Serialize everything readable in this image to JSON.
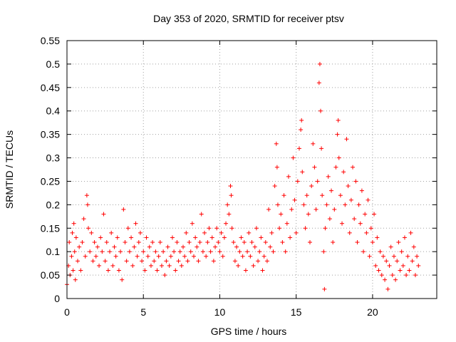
{
  "chart_data": {
    "type": "scatter",
    "title": "Day 353 of 2020, SRMTID for receiver ptsv",
    "xlabel": "GPS time / hours",
    "ylabel": "SRMTID / TECUs",
    "xlim": [
      0,
      24.2
    ],
    "ylim": [
      0,
      0.55
    ],
    "grid": true,
    "marker": "+",
    "color": "#ff0000",
    "xticks": [
      0,
      5,
      10,
      15,
      20
    ],
    "xtick_labels": [
      "0",
      "5",
      "10",
      "15",
      "20"
    ],
    "yticks": [
      0,
      0.05,
      0.1,
      0.15,
      0.2,
      0.25,
      0.3,
      0.35,
      0.4,
      0.45,
      0.5,
      0.55
    ],
    "ytick_labels": [
      "0",
      "0.05",
      "0.1",
      "0.15",
      "0.2",
      "0.25",
      "0.3",
      "0.35",
      "0.4",
      "0.45",
      "0.5",
      "0.55"
    ],
    "series": [
      {
        "name": "SRMTID",
        "points": [
          [
            0.0,
            0.03
          ],
          [
            0.1,
            0.07
          ],
          [
            0.15,
            0.12
          ],
          [
            0.2,
            0.05
          ],
          [
            0.3,
            0.09
          ],
          [
            0.35,
            0.14
          ],
          [
            0.4,
            0.06
          ],
          [
            0.45,
            0.16
          ],
          [
            0.5,
            0.1
          ],
          [
            0.55,
            0.04
          ],
          [
            0.6,
            0.13
          ],
          [
            0.7,
            0.08
          ],
          [
            0.8,
            0.11
          ],
          [
            0.9,
            0.06
          ],
          [
            1.0,
            0.12
          ],
          [
            1.1,
            0.17
          ],
          [
            1.2,
            0.09
          ],
          [
            1.3,
            0.22
          ],
          [
            1.35,
            0.2
          ],
          [
            1.4,
            0.15
          ],
          [
            1.5,
            0.1
          ],
          [
            1.6,
            0.14
          ],
          [
            1.7,
            0.08
          ],
          [
            1.8,
            0.12
          ],
          [
            1.9,
            0.09
          ],
          [
            2.0,
            0.11
          ],
          [
            2.1,
            0.07
          ],
          [
            2.2,
            0.13
          ],
          [
            2.3,
            0.1
          ],
          [
            2.4,
            0.18
          ],
          [
            2.5,
            0.08
          ],
          [
            2.6,
            0.12
          ],
          [
            2.7,
            0.06
          ],
          [
            2.8,
            0.1
          ],
          [
            2.9,
            0.14
          ],
          [
            3.0,
            0.07
          ],
          [
            3.1,
            0.11
          ],
          [
            3.2,
            0.09
          ],
          [
            3.3,
            0.13
          ],
          [
            3.4,
            0.06
          ],
          [
            3.5,
            0.1
          ],
          [
            3.6,
            0.04
          ],
          [
            3.7,
            0.19
          ],
          [
            3.8,
            0.12
          ],
          [
            3.9,
            0.08
          ],
          [
            4.0,
            0.15
          ],
          [
            4.1,
            0.1
          ],
          [
            4.2,
            0.13
          ],
          [
            4.3,
            0.07
          ],
          [
            4.4,
            0.11
          ],
          [
            4.5,
            0.16
          ],
          [
            4.6,
            0.09
          ],
          [
            4.7,
            0.12
          ],
          [
            4.8,
            0.14
          ],
          [
            4.9,
            0.08
          ],
          [
            5.0,
            0.1
          ],
          [
            5.1,
            0.06
          ],
          [
            5.2,
            0.13
          ],
          [
            5.3,
            0.09
          ],
          [
            5.4,
            0.11
          ],
          [
            5.5,
            0.07
          ],
          [
            5.6,
            0.12
          ],
          [
            5.7,
            0.08
          ],
          [
            5.8,
            0.1
          ],
          [
            5.9,
            0.06
          ],
          [
            6.0,
            0.09
          ],
          [
            6.1,
            0.12
          ],
          [
            6.2,
            0.07
          ],
          [
            6.3,
            0.1
          ],
          [
            6.4,
            0.05
          ],
          [
            6.5,
            0.08
          ],
          [
            6.6,
            0.11
          ],
          [
            6.7,
            0.07
          ],
          [
            6.8,
            0.09
          ],
          [
            6.9,
            0.13
          ],
          [
            7.0,
            0.1
          ],
          [
            7.1,
            0.06
          ],
          [
            7.2,
            0.12
          ],
          [
            7.3,
            0.08
          ],
          [
            7.4,
            0.1
          ],
          [
            7.5,
            0.07
          ],
          [
            7.6,
            0.11
          ],
          [
            7.7,
            0.09
          ],
          [
            7.8,
            0.14
          ],
          [
            7.9,
            0.08
          ],
          [
            8.0,
            0.12
          ],
          [
            8.1,
            0.1
          ],
          [
            8.2,
            0.16
          ],
          [
            8.3,
            0.09
          ],
          [
            8.4,
            0.13
          ],
          [
            8.5,
            0.11
          ],
          [
            8.6,
            0.08
          ],
          [
            8.7,
            0.12
          ],
          [
            8.8,
            0.18
          ],
          [
            8.9,
            0.1
          ],
          [
            9.0,
            0.14
          ],
          [
            9.1,
            0.09
          ],
          [
            9.2,
            0.12
          ],
          [
            9.3,
            0.15
          ],
          [
            9.4,
            0.1
          ],
          [
            9.5,
            0.13
          ],
          [
            9.6,
            0.08
          ],
          [
            9.7,
            0.11
          ],
          [
            9.8,
            0.15
          ],
          [
            9.9,
            0.12
          ],
          [
            10.0,
            0.1
          ],
          [
            10.1,
            0.14
          ],
          [
            10.2,
            0.09
          ],
          [
            10.3,
            0.13
          ],
          [
            10.4,
            0.16
          ],
          [
            10.5,
            0.2
          ],
          [
            10.6,
            0.18
          ],
          [
            10.7,
            0.24
          ],
          [
            10.75,
            0.22
          ],
          [
            10.8,
            0.15
          ],
          [
            10.9,
            0.12
          ],
          [
            11.0,
            0.08
          ],
          [
            11.1,
            0.11
          ],
          [
            11.2,
            0.07
          ],
          [
            11.3,
            0.1
          ],
          [
            11.4,
            0.13
          ],
          [
            11.5,
            0.09
          ],
          [
            11.6,
            0.12
          ],
          [
            11.7,
            0.06
          ],
          [
            11.8,
            0.1
          ],
          [
            11.9,
            0.14
          ],
          [
            12.0,
            0.09
          ],
          [
            12.1,
            0.12
          ],
          [
            12.2,
            0.07
          ],
          [
            12.3,
            0.11
          ],
          [
            12.4,
            0.15
          ],
          [
            12.5,
            0.08
          ],
          [
            12.6,
            0.1
          ],
          [
            12.7,
            0.13
          ],
          [
            12.8,
            0.06
          ],
          [
            12.9,
            0.09
          ],
          [
            13.0,
            0.12
          ],
          [
            13.1,
            0.08
          ],
          [
            13.2,
            0.19
          ],
          [
            13.3,
            0.11
          ],
          [
            13.4,
            0.14
          ],
          [
            13.5,
            0.1
          ],
          [
            13.6,
            0.24
          ],
          [
            13.7,
            0.33
          ],
          [
            13.75,
            0.28
          ],
          [
            13.8,
            0.2
          ],
          [
            13.9,
            0.15
          ],
          [
            14.0,
            0.18
          ],
          [
            14.1,
            0.12
          ],
          [
            14.2,
            0.22
          ],
          [
            14.3,
            0.1
          ],
          [
            14.4,
            0.16
          ],
          [
            14.5,
            0.26
          ],
          [
            14.6,
            0.13
          ],
          [
            14.7,
            0.19
          ],
          [
            14.8,
            0.3
          ],
          [
            14.9,
            0.21
          ],
          [
            15.0,
            0.14
          ],
          [
            15.1,
            0.25
          ],
          [
            15.2,
            0.32
          ],
          [
            15.3,
            0.36
          ],
          [
            15.35,
            0.38
          ],
          [
            15.4,
            0.27
          ],
          [
            15.5,
            0.2
          ],
          [
            15.6,
            0.15
          ],
          [
            15.7,
            0.22
          ],
          [
            15.8,
            0.18
          ],
          [
            15.9,
            0.12
          ],
          [
            16.0,
            0.24
          ],
          [
            16.1,
            0.33
          ],
          [
            16.2,
            0.28
          ],
          [
            16.3,
            0.19
          ],
          [
            16.4,
            0.25
          ],
          [
            16.5,
            0.46
          ],
          [
            16.55,
            0.5
          ],
          [
            16.6,
            0.4
          ],
          [
            16.65,
            0.32
          ],
          [
            16.7,
            0.22
          ],
          [
            16.8,
            0.1
          ],
          [
            16.85,
            0.02
          ],
          [
            16.9,
            0.15
          ],
          [
            17.0,
            0.2
          ],
          [
            17.1,
            0.26
          ],
          [
            17.2,
            0.17
          ],
          [
            17.3,
            0.23
          ],
          [
            17.4,
            0.12
          ],
          [
            17.5,
            0.19
          ],
          [
            17.6,
            0.28
          ],
          [
            17.7,
            0.35
          ],
          [
            17.75,
            0.38
          ],
          [
            17.8,
            0.3
          ],
          [
            17.9,
            0.22
          ],
          [
            18.0,
            0.16
          ],
          [
            18.1,
            0.27
          ],
          [
            18.2,
            0.2
          ],
          [
            18.3,
            0.34
          ],
          [
            18.4,
            0.24
          ],
          [
            18.5,
            0.14
          ],
          [
            18.6,
            0.21
          ],
          [
            18.7,
            0.28
          ],
          [
            18.8,
            0.17
          ],
          [
            18.9,
            0.25
          ],
          [
            19.0,
            0.12
          ],
          [
            19.1,
            0.2
          ],
          [
            19.2,
            0.16
          ],
          [
            19.3,
            0.23
          ],
          [
            19.4,
            0.1
          ],
          [
            19.5,
            0.18
          ],
          [
            19.6,
            0.14
          ],
          [
            19.7,
            0.21
          ],
          [
            19.8,
            0.09
          ],
          [
            19.9,
            0.15
          ],
          [
            20.0,
            0.12
          ],
          [
            20.1,
            0.18
          ],
          [
            20.2,
            0.07
          ],
          [
            20.3,
            0.13
          ],
          [
            20.4,
            0.06
          ],
          [
            20.5,
            0.1
          ],
          [
            20.6,
            0.05
          ],
          [
            20.7,
            0.09
          ],
          [
            20.8,
            0.04
          ],
          [
            20.9,
            0.08
          ],
          [
            21.0,
            0.02
          ],
          [
            21.1,
            0.07
          ],
          [
            21.2,
            0.11
          ],
          [
            21.3,
            0.05
          ],
          [
            21.4,
            0.09
          ],
          [
            21.5,
            0.04
          ],
          [
            21.6,
            0.08
          ],
          [
            21.7,
            0.12
          ],
          [
            21.8,
            0.06
          ],
          [
            21.9,
            0.1
          ],
          [
            22.0,
            0.07
          ],
          [
            22.1,
            0.13
          ],
          [
            22.2,
            0.05
          ],
          [
            22.3,
            0.09
          ],
          [
            22.4,
            0.06
          ],
          [
            22.5,
            0.14
          ],
          [
            22.6,
            0.08
          ],
          [
            22.7,
            0.11
          ],
          [
            22.8,
            0.05
          ],
          [
            22.9,
            0.09
          ],
          [
            23.0,
            0.07
          ]
        ]
      }
    ]
  }
}
